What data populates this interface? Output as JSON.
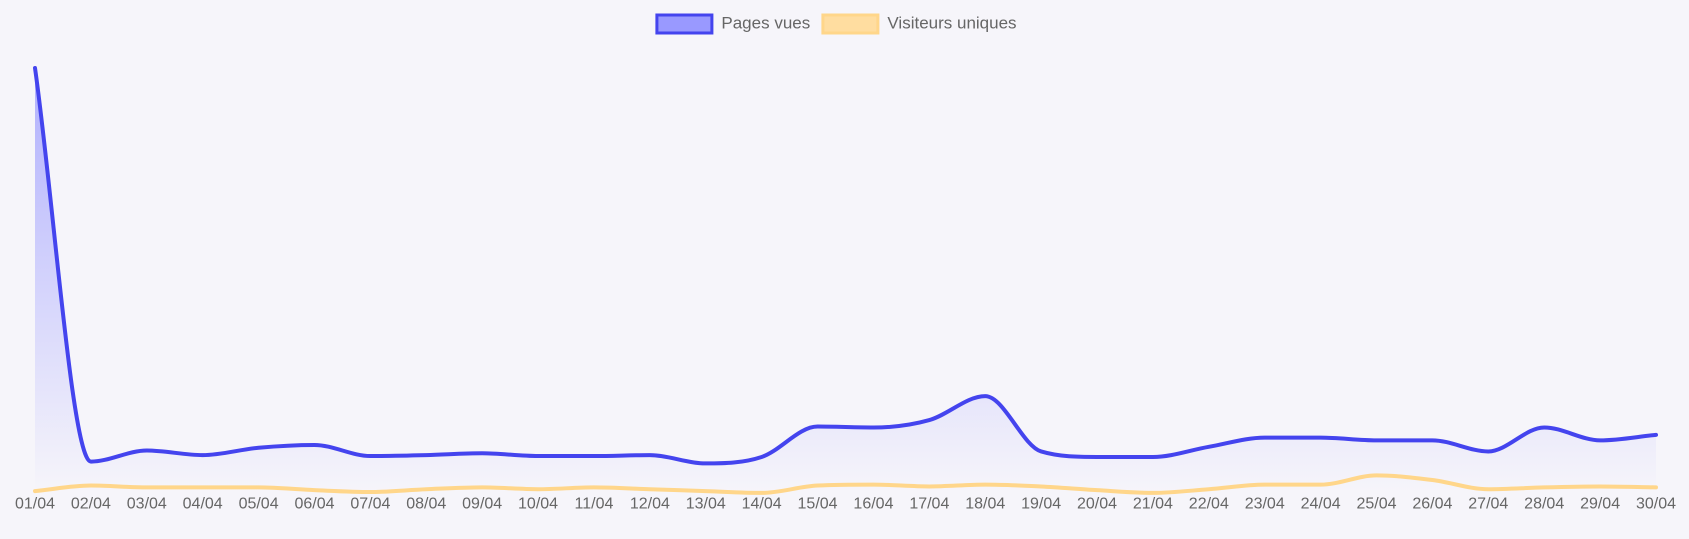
{
  "chart_data": {
    "type": "line",
    "title": "",
    "xlabel": "",
    "ylabel": "",
    "legend_position": "top-center",
    "grid": false,
    "ylim": [
      0,
      460
    ],
    "categories": [
      "01/04",
      "02/04",
      "03/04",
      "04/04",
      "05/04",
      "06/04",
      "07/04",
      "08/04",
      "09/04",
      "10/04",
      "11/04",
      "12/04",
      "13/04",
      "14/04",
      "15/04",
      "16/04",
      "17/04",
      "18/04",
      "19/04",
      "20/04",
      "21/04",
      "22/04",
      "23/04",
      "24/04",
      "25/04",
      "26/04",
      "27/04",
      "28/04",
      "29/04",
      "30/04"
    ],
    "series": [
      {
        "name": "Pages vues",
        "color": "#4444ee",
        "fill": "#9999ff",
        "area_fill": true,
        "values": [
          460,
          33,
          45,
          40,
          48,
          51,
          39,
          40,
          42,
          39,
          39,
          40,
          31,
          38,
          71,
          70,
          78,
          104,
          44,
          38,
          38,
          49,
          59,
          59,
          56,
          56,
          44,
          70,
          56,
          62
        ]
      },
      {
        "name": "Visiteurs uniques",
        "color": "#ffd68a",
        "fill": "#ffdda0",
        "area_fill": false,
        "values": [
          1,
          7,
          5,
          5,
          5,
          2,
          0,
          3,
          5,
          3,
          5,
          3,
          1,
          -1,
          7,
          8,
          6,
          8,
          6,
          2,
          -1,
          3,
          8,
          8,
          18,
          13,
          3,
          5,
          6,
          5
        ]
      }
    ]
  }
}
